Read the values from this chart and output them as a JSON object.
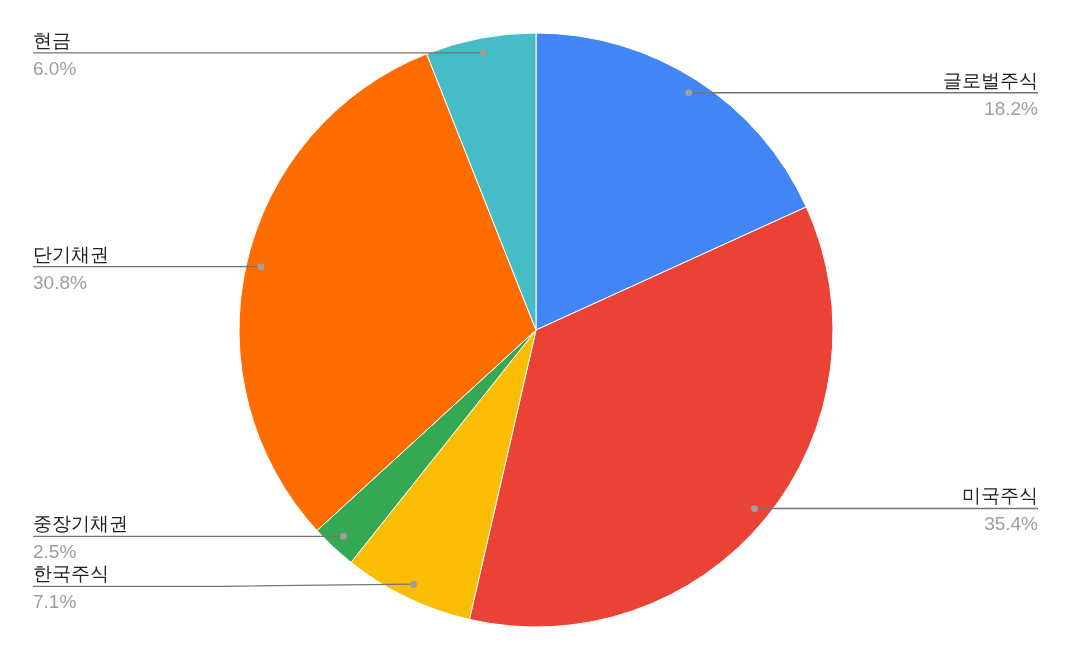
{
  "chart_data": {
    "type": "pie",
    "categories": [
      "글로벌주식",
      "미국주식",
      "한국주식",
      "중장기채권",
      "단기채권",
      "현금"
    ],
    "values": [
      18.2,
      35.4,
      7.1,
      2.5,
      30.8,
      6.0
    ],
    "colors": [
      "#4285f4",
      "#ea4335",
      "#fbbc04",
      "#34a853",
      "#ff6d01",
      "#46bdc6"
    ],
    "value_labels": [
      "18.2%",
      "35.4%",
      "7.1%",
      "2.5%",
      "30.8%",
      "6.0%"
    ]
  }
}
